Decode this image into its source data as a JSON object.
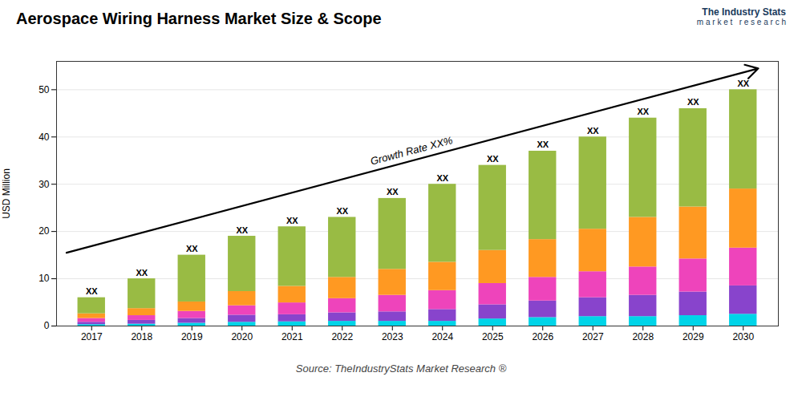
{
  "chart_data": {
    "type": "bar",
    "stacked": true,
    "title": "Aerospace Wiring Harness Market Size & Scope",
    "ylabel": "USD Million",
    "source": "Source: TheIndustryStats Market Research ®",
    "logo_text": "The Industry Stats",
    "logo_subtext": "m a r k e t   r e s e a r c h",
    "categories": [
      "2017",
      "2018",
      "2019",
      "2020",
      "2021",
      "2022",
      "2023",
      "2024",
      "2025",
      "2026",
      "2027",
      "2028",
      "2029",
      "2030"
    ],
    "series": [
      {
        "color": "#00d4e8",
        "values": [
          0.3,
          0.4,
          0.6,
          0.8,
          0.9,
          1.0,
          1.0,
          1.0,
          1.5,
          1.8,
          2.0,
          2.0,
          2.2,
          2.5
        ]
      },
      {
        "color": "#8844cc",
        "values": [
          0.5,
          0.8,
          1.0,
          1.5,
          1.5,
          1.8,
          2.0,
          2.5,
          3.0,
          3.5,
          4.0,
          4.5,
          5.0,
          6.0
        ]
      },
      {
        "color": "#ee44bb",
        "values": [
          0.8,
          1.0,
          1.5,
          2.0,
          2.5,
          3.0,
          3.5,
          4.0,
          4.5,
          5.0,
          5.5,
          6.0,
          7.0,
          8.0
        ]
      },
      {
        "color": "#ff9922",
        "values": [
          1.0,
          1.5,
          2.0,
          3.0,
          3.5,
          4.5,
          5.5,
          6.0,
          7.0,
          8.0,
          9.0,
          10.5,
          11.0,
          12.5
        ]
      },
      {
        "color": "#99bb44",
        "values": [
          3.4,
          6.3,
          9.9,
          11.7,
          12.6,
          12.7,
          15.0,
          16.5,
          18.0,
          18.7,
          19.5,
          21.0,
          20.8,
          21.0
        ]
      }
    ],
    "annotations": [
      {
        "text": "XX",
        "x": "2017",
        "y": 6
      },
      {
        "text": "XX",
        "x": "2018",
        "y": 10
      },
      {
        "text": "XX",
        "x": "2019",
        "y": 15
      },
      {
        "text": "XX",
        "x": "2020",
        "y": 19
      },
      {
        "text": "XX",
        "x": "2021",
        "y": 21
      },
      {
        "text": "XX",
        "x": "2022",
        "y": 23
      },
      {
        "text": "XX",
        "x": "2023",
        "y": 27
      },
      {
        "text": "XX",
        "x": "2024",
        "y": 30
      },
      {
        "text": "XX",
        "x": "2025",
        "y": 34
      },
      {
        "text": "XX",
        "x": "2026",
        "y": 37
      },
      {
        "text": "XX",
        "x": "2027",
        "y": 40
      },
      {
        "text": "XX",
        "x": "2028",
        "y": 44
      },
      {
        "text": "XX",
        "x": "2029",
        "y": 46
      },
      {
        "text": "XX",
        "x": "2030",
        "y": 50
      }
    ],
    "arrow": {
      "text": "Growth Rate XX%",
      "x1": -0.5,
      "y1": 15.5,
      "x2": 13.3,
      "y2": 54.5
    },
    "ylim": [
      0,
      56
    ],
    "yticks": [
      0,
      10,
      20,
      30,
      40,
      50
    ],
    "grid": true
  }
}
